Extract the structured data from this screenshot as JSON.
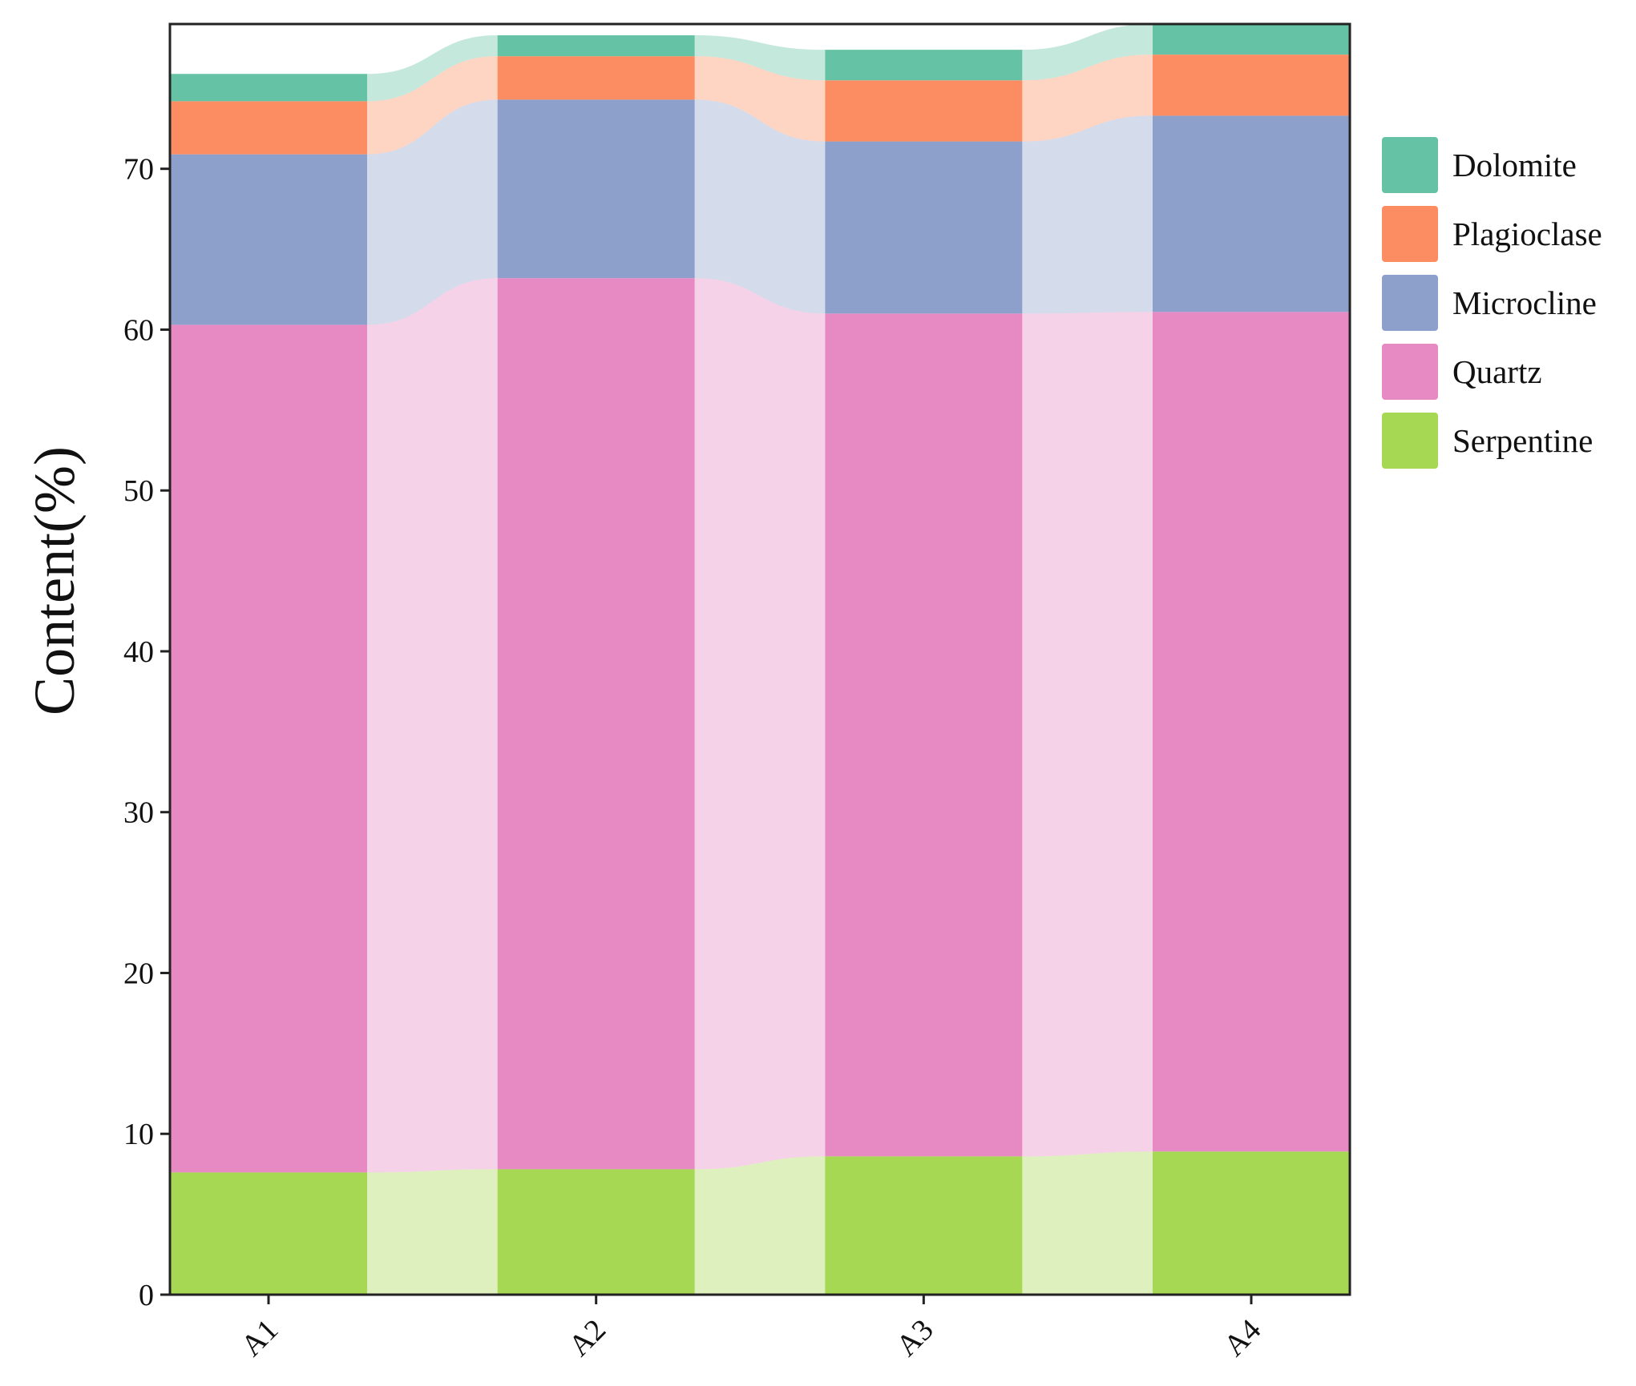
{
  "chart_data": {
    "type": "bar",
    "stacked": true,
    "title": "",
    "xlabel": "",
    "ylabel": "Content(%)",
    "ylim": [
      0,
      79
    ],
    "yticks": [
      0,
      10,
      20,
      30,
      40,
      50,
      60,
      70
    ],
    "categories": [
      "A1",
      "A2",
      "A3",
      "A4"
    ],
    "series": [
      {
        "name": "Serpentine",
        "color": "#a6d854",
        "values": [
          7.6,
          7.8,
          8.6,
          8.9
        ]
      },
      {
        "name": "Quartz",
        "color": "#e78ac3",
        "values": [
          52.7,
          55.4,
          52.4,
          52.2
        ]
      },
      {
        "name": "Microcline",
        "color": "#8da0cb",
        "values": [
          10.6,
          11.1,
          10.7,
          12.2
        ]
      },
      {
        "name": "Plagioclase",
        "color": "#fc8d62",
        "values": [
          3.3,
          2.7,
          3.8,
          3.8
        ]
      },
      {
        "name": "Dolomite",
        "color": "#66c2a5",
        "values": [
          1.7,
          1.3,
          1.9,
          1.9
        ]
      }
    ],
    "legend_order": [
      "Dolomite",
      "Plagioclase",
      "Microcline",
      "Quartz",
      "Serpentine"
    ],
    "legend_position": "right",
    "grid": false,
    "flow_connectors": true
  }
}
